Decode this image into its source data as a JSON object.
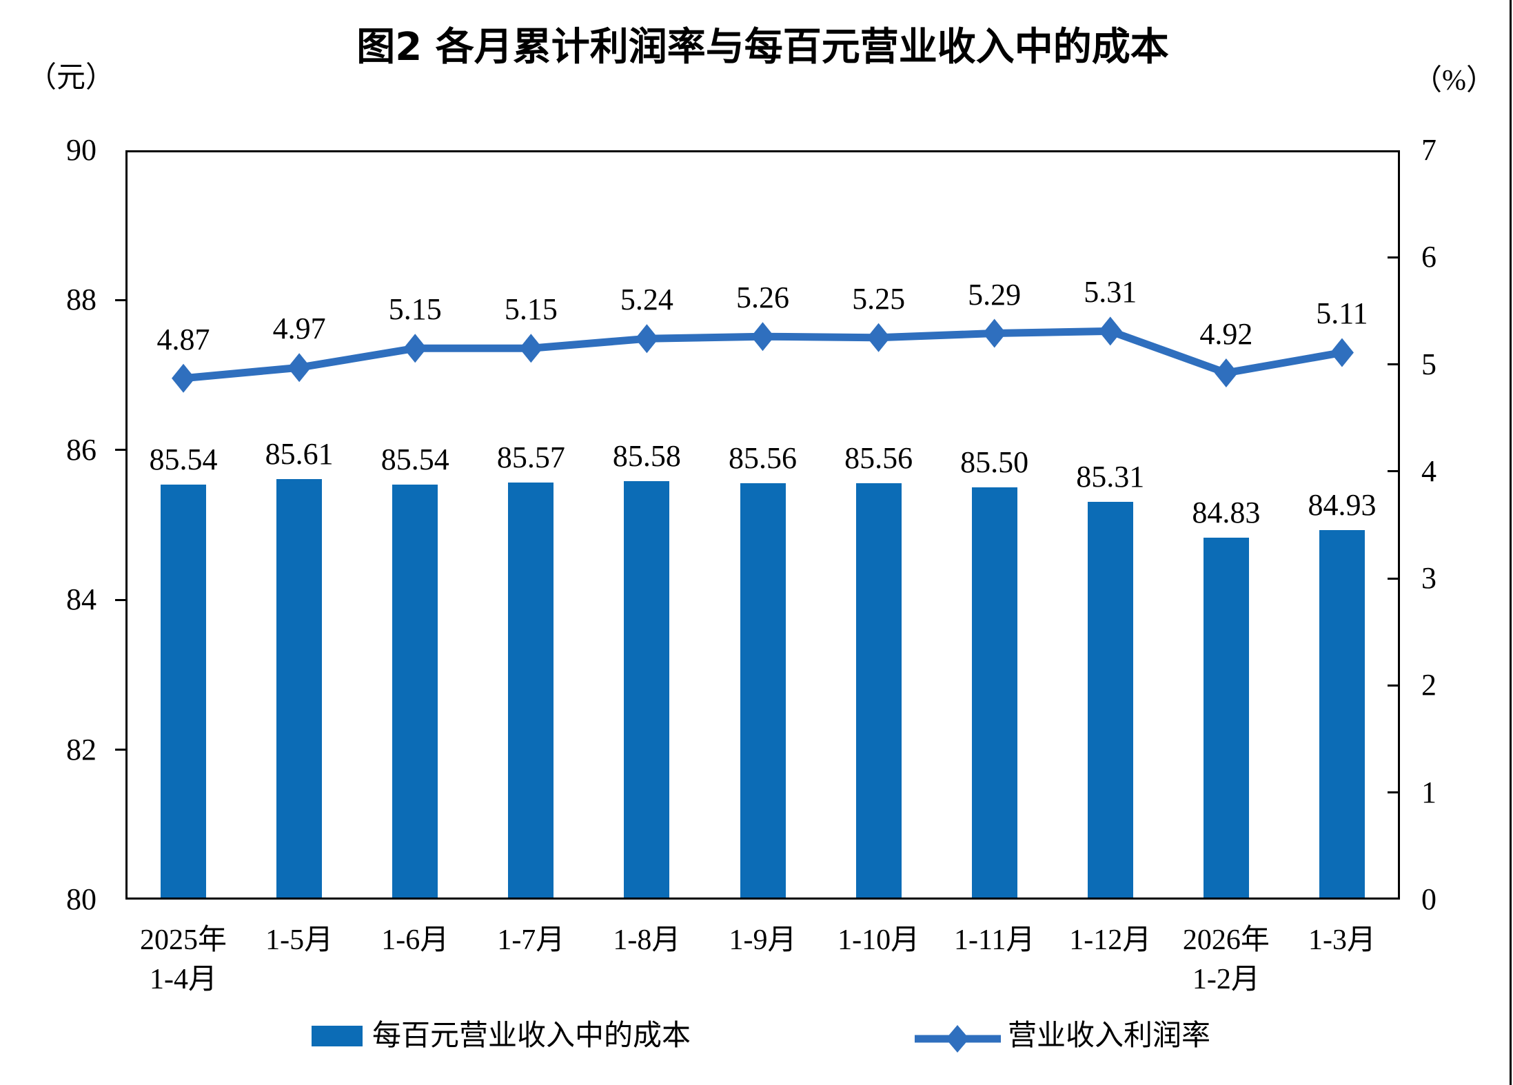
{
  "chart_data": {
    "type": "bar+line",
    "title": "图2 各月累计利润率与每百元营业收入中的成本",
    "categories": [
      "2025年\n1-4月",
      "1-5月",
      "1-6月",
      "1-7月",
      "1-8月",
      "1-9月",
      "1-10月",
      "1-11月",
      "1-12月",
      "2026年\n1-2月",
      "1-3月"
    ],
    "series": [
      {
        "name": "每百元营业收入中的成本",
        "type": "bar",
        "axis": "left",
        "color": "#0C6CB6",
        "values": [
          85.54,
          85.61,
          85.54,
          85.57,
          85.58,
          85.56,
          85.56,
          85.5,
          85.31,
          84.83,
          84.93
        ],
        "labels": [
          "85.54",
          "85.61",
          "85.54",
          "85.57",
          "85.58",
          "85.56",
          "85.56",
          "85.50",
          "85.31",
          "84.83",
          "84.93"
        ]
      },
      {
        "name": "营业收入利润率",
        "type": "line",
        "axis": "right",
        "color": "#2F6FBE",
        "marker": "diamond",
        "values": [
          4.87,
          4.97,
          5.15,
          5.15,
          5.24,
          5.26,
          5.25,
          5.29,
          5.31,
          4.92,
          5.11
        ],
        "labels": [
          "4.87",
          "4.97",
          "5.15",
          "5.15",
          "5.24",
          "5.26",
          "5.25",
          "5.29",
          "5.31",
          "4.92",
          "5.11"
        ]
      }
    ],
    "left_axis": {
      "unit": "（元）",
      "min": 80,
      "max": 90,
      "ticks": [
        90,
        88,
        86,
        84,
        82,
        80
      ]
    },
    "right_axis": {
      "unit": "（%）",
      "min": 0,
      "max": 7,
      "ticks": [
        7,
        6,
        5,
        4,
        3,
        2,
        1,
        0
      ]
    },
    "legend_position": "bottom",
    "grid": false
  }
}
